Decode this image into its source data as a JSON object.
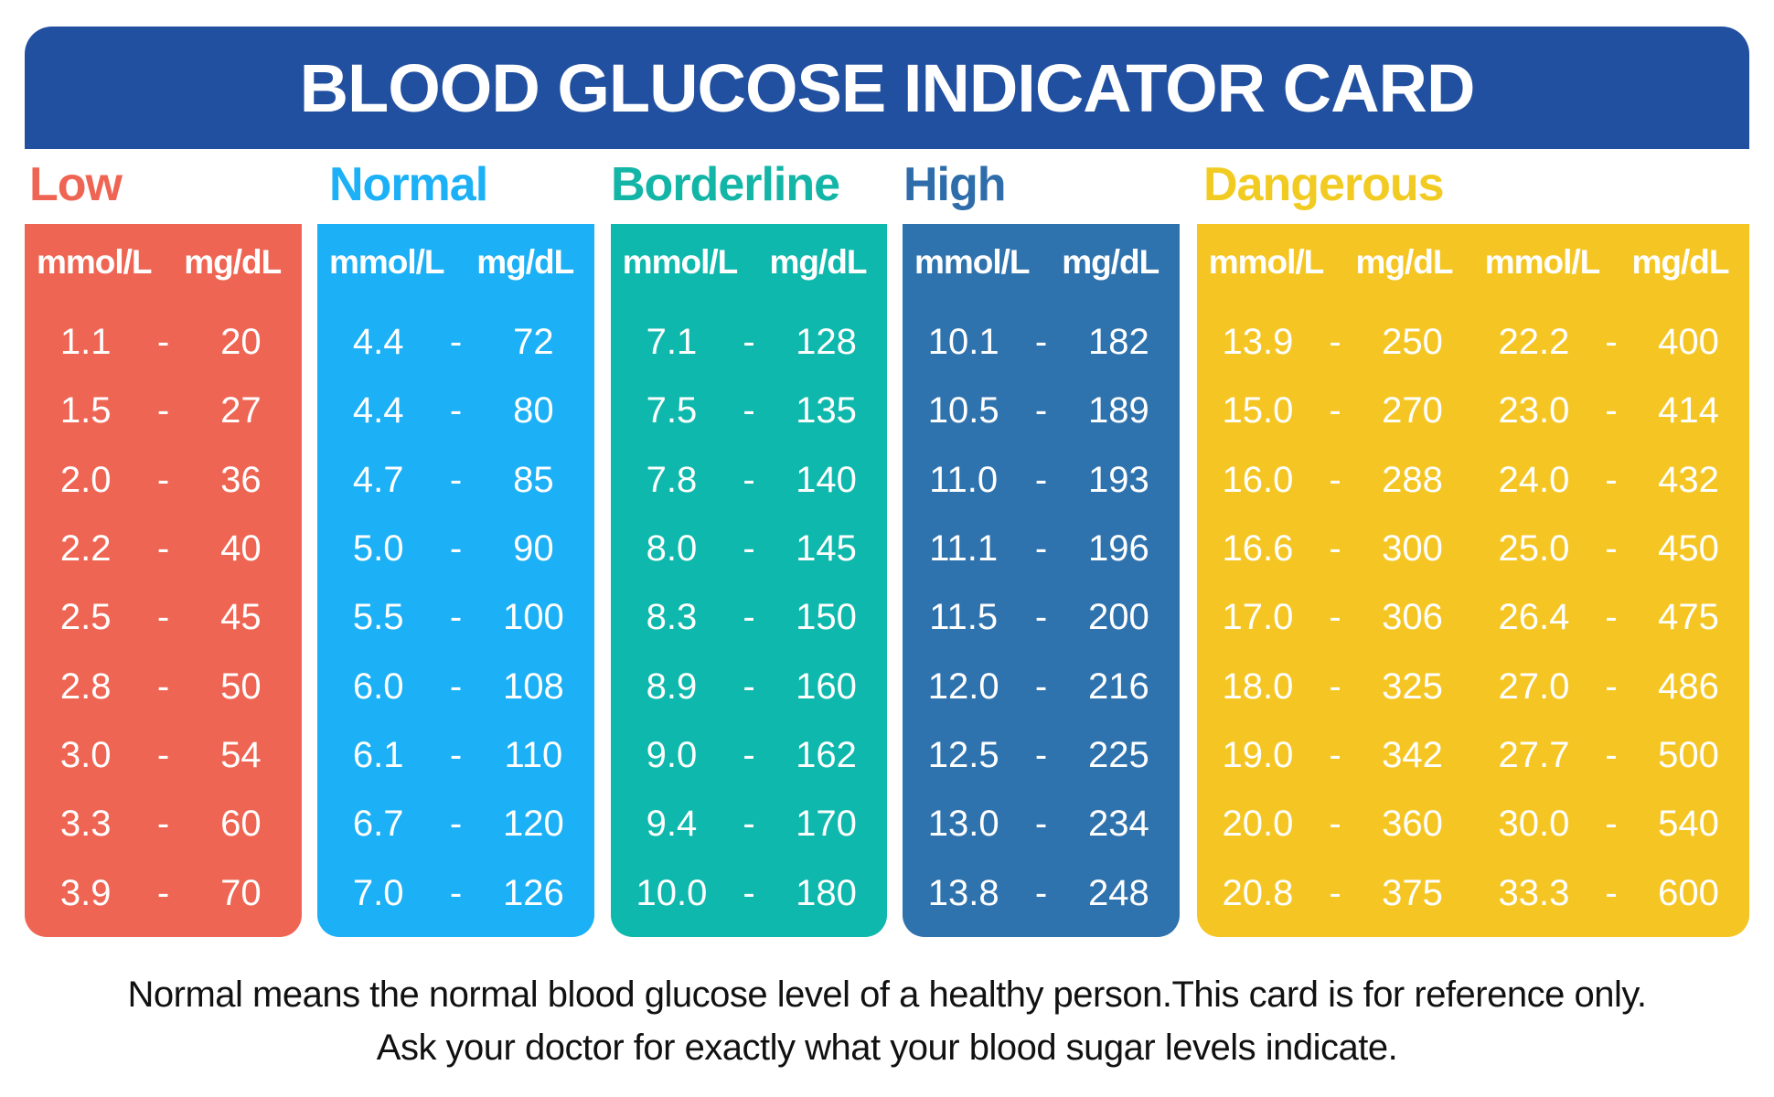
{
  "title": "BLOOD GLUCOSE INDICATOR CARD",
  "unit_mmol": "mmol/L",
  "unit_mg": "mg/dL",
  "dash": "-",
  "categories": [
    {
      "name": "Low",
      "color": "#EF6553",
      "title_color": "#EF6553",
      "columns": [
        [
          [
            "1.1",
            "20"
          ],
          [
            "1.5",
            "27"
          ],
          [
            "2.0",
            "36"
          ],
          [
            "2.2",
            "40"
          ],
          [
            "2.5",
            "45"
          ],
          [
            "2.8",
            "50"
          ],
          [
            "3.0",
            "54"
          ],
          [
            "3.3",
            "60"
          ],
          [
            "3.9",
            "70"
          ]
        ]
      ]
    },
    {
      "name": "Normal",
      "color": "#1CB0F6",
      "title_color": "#1CB0F6",
      "columns": [
        [
          [
            "4.4",
            "72"
          ],
          [
            "4.4",
            "80"
          ],
          [
            "4.7",
            "85"
          ],
          [
            "5.0",
            "90"
          ],
          [
            "5.5",
            "100"
          ],
          [
            "6.0",
            "108"
          ],
          [
            "6.1",
            "110"
          ],
          [
            "6.7",
            "120"
          ],
          [
            "7.0",
            "126"
          ]
        ]
      ]
    },
    {
      "name": "Borderline",
      "color": "#0FB8AC",
      "title_color": "#12B5A6",
      "columns": [
        [
          [
            "7.1",
            "128"
          ],
          [
            "7.5",
            "135"
          ],
          [
            "7.8",
            "140"
          ],
          [
            "8.0",
            "145"
          ],
          [
            "8.3",
            "150"
          ],
          [
            "8.9",
            "160"
          ],
          [
            "9.0",
            "162"
          ],
          [
            "9.4",
            "170"
          ],
          [
            "10.0",
            "180"
          ]
        ]
      ]
    },
    {
      "name": "High",
      "color": "#2F73AE",
      "title_color": "#2E6DAA",
      "columns": [
        [
          [
            "10.1",
            "182"
          ],
          [
            "10.5",
            "189"
          ],
          [
            "11.0",
            "193"
          ],
          [
            "11.1",
            "196"
          ],
          [
            "11.5",
            "200"
          ],
          [
            "12.0",
            "216"
          ],
          [
            "12.5",
            "225"
          ],
          [
            "13.0",
            "234"
          ],
          [
            "13.8",
            "248"
          ]
        ]
      ]
    },
    {
      "name": "Dangerous",
      "color": "#F5C623",
      "title_color": "#F2CB22",
      "columns": [
        [
          [
            "13.9",
            "250"
          ],
          [
            "15.0",
            "270"
          ],
          [
            "16.0",
            "288"
          ],
          [
            "16.6",
            "300"
          ],
          [
            "17.0",
            "306"
          ],
          [
            "18.0",
            "325"
          ],
          [
            "19.0",
            "342"
          ],
          [
            "20.0",
            "360"
          ],
          [
            "20.8",
            "375"
          ]
        ],
        [
          [
            "22.2",
            "400"
          ],
          [
            "23.0",
            "414"
          ],
          [
            "24.0",
            "432"
          ],
          [
            "25.0",
            "450"
          ],
          [
            "26.4",
            "475"
          ],
          [
            "27.0",
            "486"
          ],
          [
            "27.7",
            "500"
          ],
          [
            "30.0",
            "540"
          ],
          [
            "33.3",
            "600"
          ]
        ]
      ]
    }
  ],
  "footer": {
    "line1": "Normal means the normal blood glucose level of a healthy person.This card is for reference only.",
    "line2": "Ask your doctor for exactly what your blood sugar levels indicate."
  }
}
